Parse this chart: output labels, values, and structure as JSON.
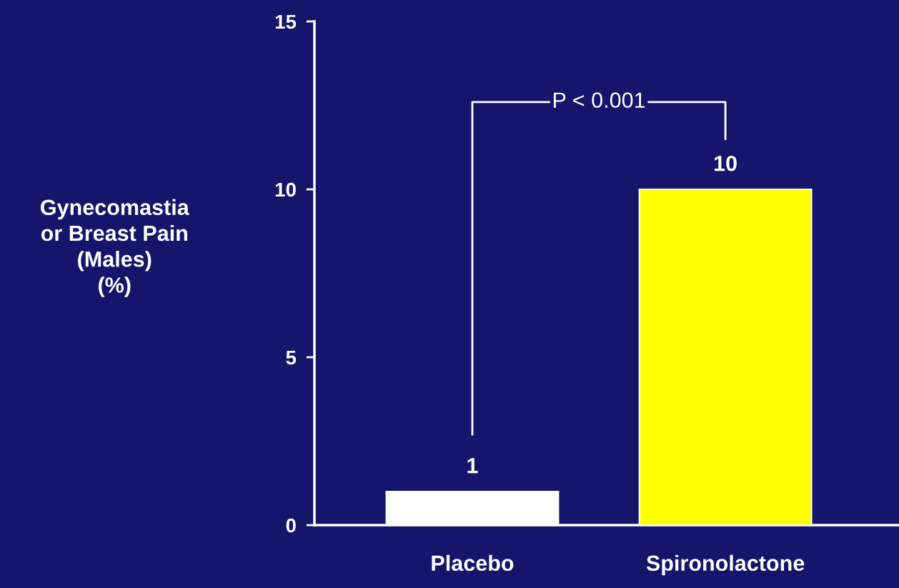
{
  "chart_data": {
    "type": "bar",
    "ylabel": "Gynecomastia\nor Breast Pain\n(Males)\n(%)",
    "categories": [
      "Placebo",
      "Spironolactone"
    ],
    "values": [
      1,
      10
    ],
    "colors": [
      "#ffffff",
      "#ffff00"
    ],
    "ylim": [
      0,
      15
    ],
    "yticks": [
      0,
      5,
      10,
      15
    ],
    "grid": false,
    "data_labels": true,
    "annotations": [
      "P < 0.001"
    ]
  }
}
